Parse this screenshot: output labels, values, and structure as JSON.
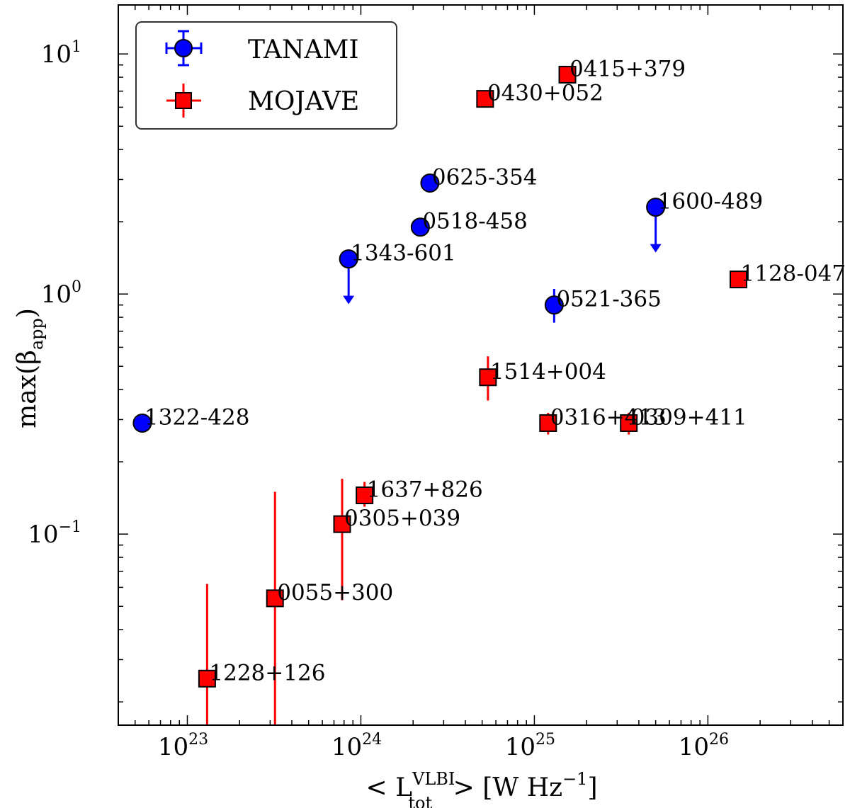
{
  "chart_data": {
    "type": "scatter",
    "xlabel": {
      "prefix": "< L",
      "sup": "VLBI",
      "sub": "tot",
      "suffix": " > [W Hz",
      "unit_exp": "−1",
      "close": "]"
    },
    "ylabel": {
      "prefix": "max(β",
      "sub": "app",
      "suffix": ")"
    },
    "x_scale": "log",
    "y_scale": "log",
    "xlim": [
      4e+22,
      6e+26
    ],
    "ylim": [
      0.016,
      16.0
    ],
    "x_ticks": [
      {
        "value": 1e+23,
        "base": "10",
        "exp": "23"
      },
      {
        "value": 1e+24,
        "base": "10",
        "exp": "24"
      },
      {
        "value": 1e+25,
        "base": "10",
        "exp": "25"
      },
      {
        "value": 1e+26,
        "base": "10",
        "exp": "26"
      }
    ],
    "y_ticks": [
      {
        "value": 0.1,
        "base": "10",
        "exp": "−1"
      },
      {
        "value": 1,
        "base": "10",
        "exp": "0"
      },
      {
        "value": 10,
        "base": "10",
        "exp": "1"
      }
    ],
    "grid": false,
    "legend": {
      "placement": "top-left",
      "entries": [
        "TANAMI",
        "MOJAVE"
      ]
    },
    "series": [
      {
        "name": "TANAMI",
        "marker": "circle",
        "color": "#0000ff",
        "points": [
          {
            "label": "1322-428",
            "x": 5.5e+22,
            "y": 0.29,
            "err_low": 0.27,
            "err_high": 0.29
          },
          {
            "label": "1343-601",
            "x": 8.5e+23,
            "y": 1.4,
            "upper_limit": true
          },
          {
            "label": "0518-458",
            "x": 2.2e+24,
            "y": 1.9
          },
          {
            "label": "0625-354",
            "x": 2.5e+24,
            "y": 2.9
          },
          {
            "label": "0521-365",
            "x": 1.3e+25,
            "y": 0.9,
            "err_low": 0.76,
            "err_high": 1.05
          },
          {
            "label": "1600-489",
            "x": 5e+25,
            "y": 2.3,
            "upper_limit": true
          }
        ]
      },
      {
        "name": "MOJAVE",
        "marker": "square",
        "color": "#ff0000",
        "points": [
          {
            "label": "1228+126",
            "x": 1.3e+23,
            "y": 0.025,
            "err_low": 0.001,
            "err_high": 0.062
          },
          {
            "label": "0055+300",
            "x": 3.2e+23,
            "y": 0.054,
            "err_low": 0.001,
            "err_high": 0.15
          },
          {
            "label": "0305+039",
            "x": 7.8e+23,
            "y": 0.11,
            "err_low": 0.053,
            "err_high": 0.17
          },
          {
            "label": "1637+826",
            "x": 1.05e+24,
            "y": 0.145,
            "err_low": 0.13,
            "err_high": 0.165
          },
          {
            "label": "1514+004",
            "x": 5.4e+24,
            "y": 0.45,
            "err_low": 0.36,
            "err_high": 0.55
          },
          {
            "label": "0430+052",
            "x": 5.2e+24,
            "y": 6.5
          },
          {
            "label": "0415+379",
            "x": 1.55e+25,
            "y": 8.2
          },
          {
            "label": "0316+413",
            "x": 1.2e+25,
            "y": 0.29,
            "err_low": 0.26,
            "err_high": 0.32
          },
          {
            "label": "0309+411",
            "x": 3.5e+25,
            "y": 0.29,
            "err_low": 0.26,
            "err_high": 0.32
          },
          {
            "label": "1128-047",
            "x": 1.5e+26,
            "y": 1.15
          }
        ]
      }
    ]
  }
}
